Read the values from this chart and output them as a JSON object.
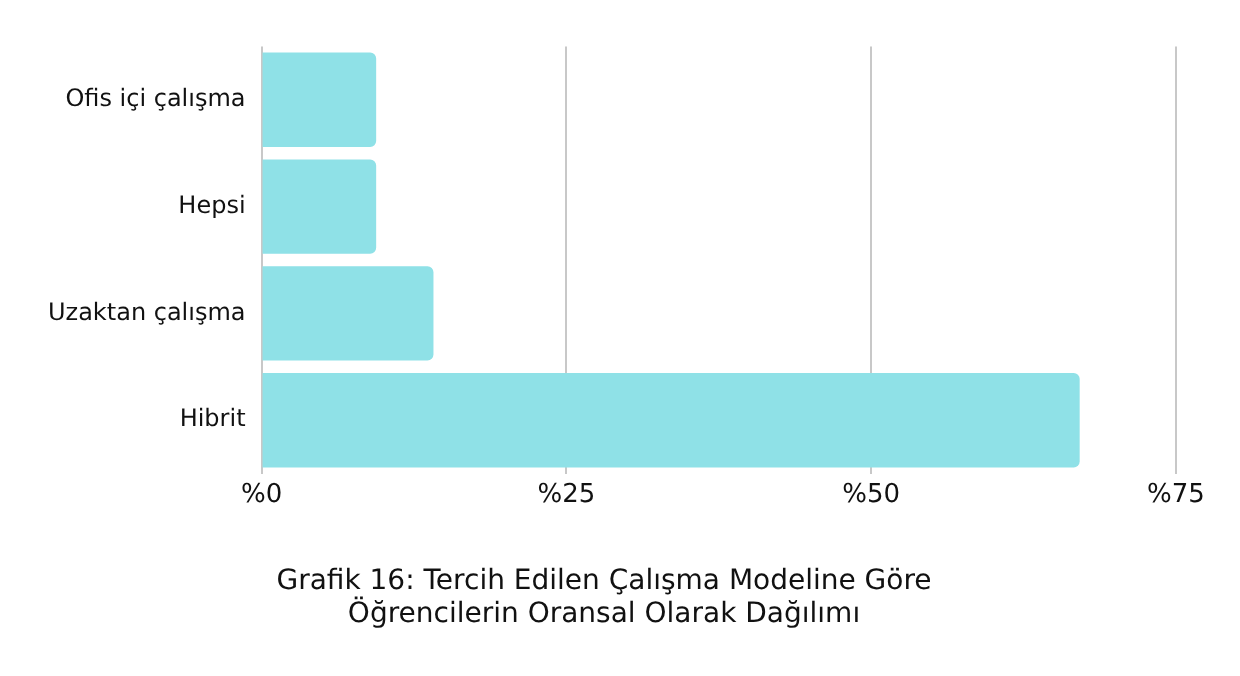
{
  "chart_data": {
    "type": "bar",
    "orientation": "horizontal",
    "title": "Grafik 16: Tercih Edilen Çalışma Modeline Göre\nÖğrencilerin Oransal Olarak Dağılımı",
    "categories": [
      "Ofis içi çalışma",
      "Hepsi",
      "Uzaktan çalışma",
      "Hibrit"
    ],
    "values": [
      9.4,
      9.4,
      14.1,
      67.1
    ],
    "color": "#8fe1e7",
    "xlim": [
      0,
      75
    ],
    "xticks": [
      {
        "value": 0,
        "label": "%0"
      },
      {
        "value": 25,
        "label": "%25"
      },
      {
        "value": 50,
        "label": "%50"
      },
      {
        "value": 75,
        "label": "%75"
      }
    ],
    "grid": "x",
    "legend": false
  }
}
